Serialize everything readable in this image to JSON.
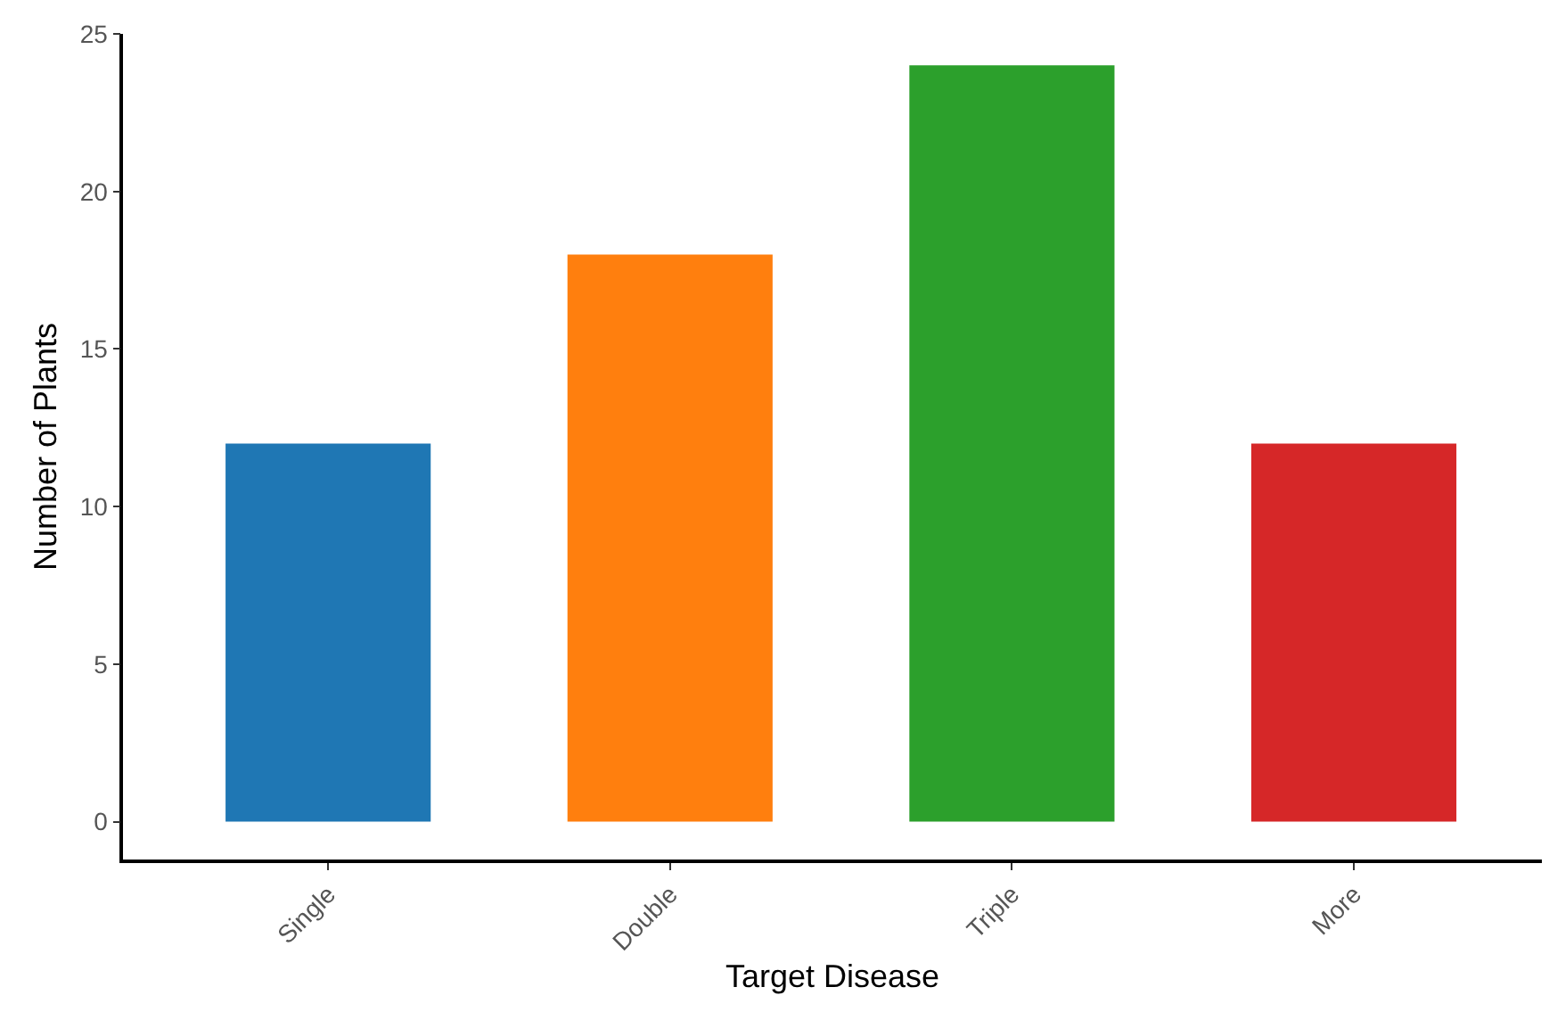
{
  "chart_data": {
    "type": "bar",
    "xlabel": "Target Disease",
    "ylabel": "Number of Plants",
    "categories": [
      "Single",
      "Double",
      "Triple",
      "More"
    ],
    "values": [
      12,
      18,
      24,
      12
    ],
    "colors": [
      "#1f77b4",
      "#ff7f0e",
      "#2ca02c",
      "#d62728"
    ],
    "ylim": [
      -1.2,
      25
    ],
    "yticks": [
      0,
      5,
      10,
      15,
      20,
      25
    ],
    "grid": false
  }
}
